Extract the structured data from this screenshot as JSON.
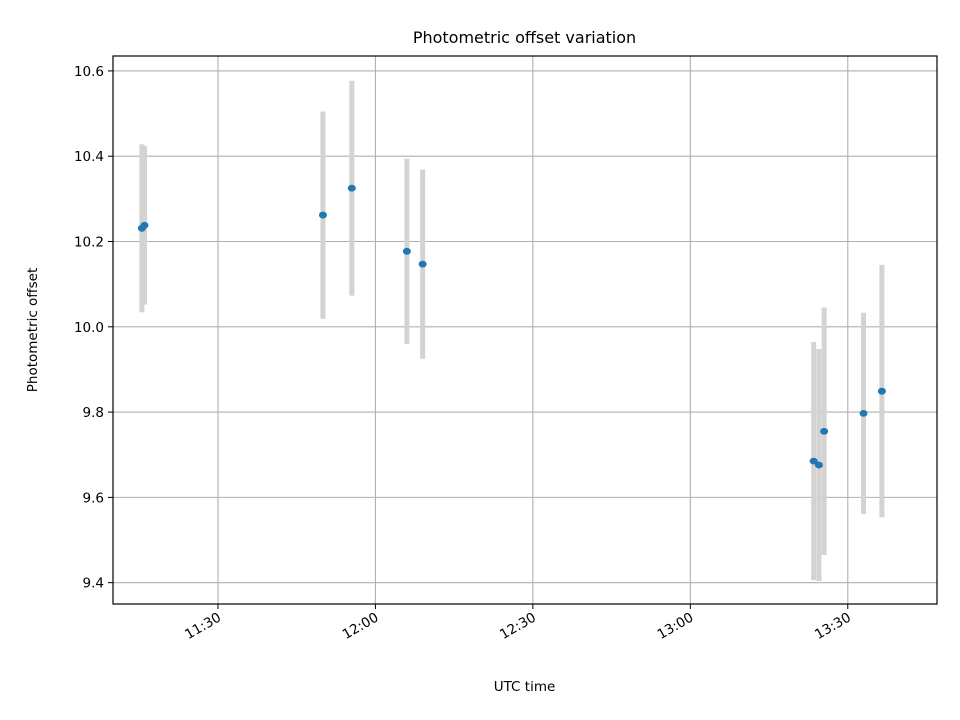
{
  "chart_data": {
    "type": "scatter",
    "title": "Photometric offset variation",
    "xlabel": "UTC time",
    "ylabel": "Photometric offset",
    "xlim": [
      "11:10",
      "13:47"
    ],
    "ylim": [
      9.35,
      10.635
    ],
    "x_ticks": [
      "11:30",
      "12:00",
      "12:30",
      "13:00",
      "13:30"
    ],
    "y_ticks": [
      "9.4",
      "9.6",
      "9.8",
      "10.0",
      "10.2",
      "10.4",
      "10.6"
    ],
    "grid": true,
    "colors": {
      "point": "#1f77b4",
      "errorbar": "#d3d3d3",
      "grid": "#b0b0b0"
    },
    "points": [
      {
        "x": "11:15:30",
        "y": 10.231,
        "yerr": 0.197
      },
      {
        "x": "11:16:00",
        "y": 10.238,
        "yerr": 0.186
      },
      {
        "x": "11:50:00",
        "y": 10.262,
        "yerr": 0.243
      },
      {
        "x": "11:55:30",
        "y": 10.325,
        "yerr": 0.252
      },
      {
        "x": "12:06:00",
        "y": 10.177,
        "yerr": 0.217
      },
      {
        "x": "12:09:00",
        "y": 10.147,
        "yerr": 0.222
      },
      {
        "x": "13:23:30",
        "y": 9.685,
        "yerr": 0.279
      },
      {
        "x": "13:24:30",
        "y": 9.676,
        "yerr": 0.272
      },
      {
        "x": "13:25:30",
        "y": 9.755,
        "yerr": 0.29
      },
      {
        "x": "13:33:00",
        "y": 9.797,
        "yerr": 0.236
      },
      {
        "x": "13:36:30",
        "y": 9.849,
        "yerr": 0.296
      }
    ]
  }
}
